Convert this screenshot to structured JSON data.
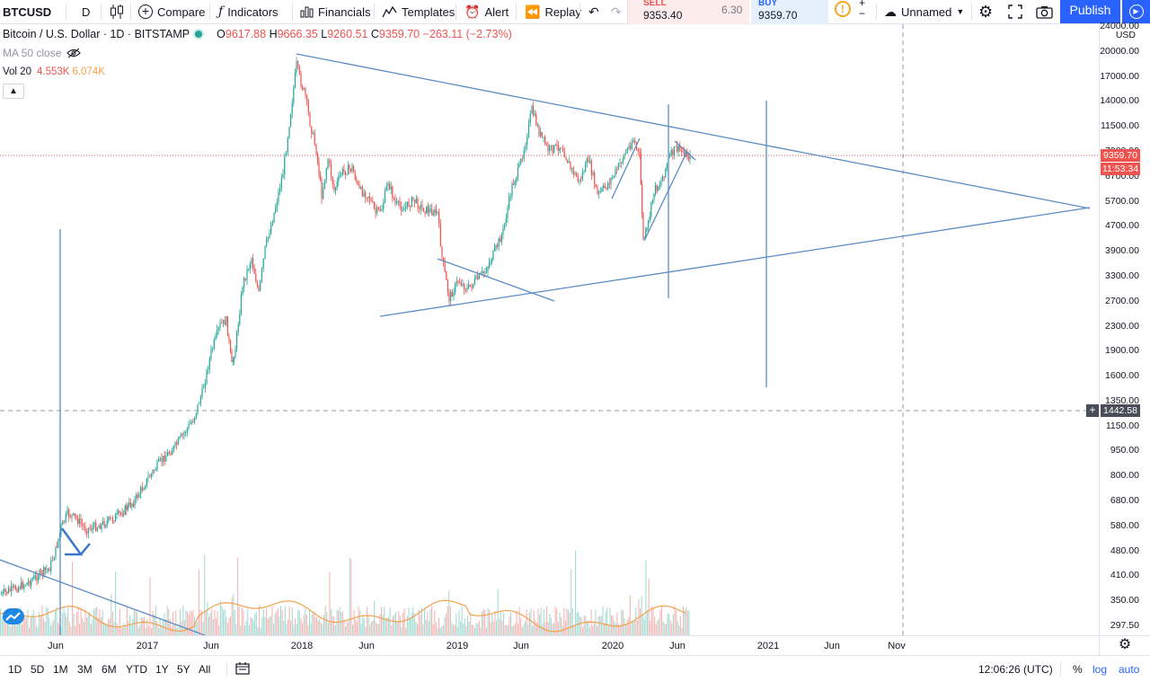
{
  "toolbar": {
    "symbol": "BTCUSD",
    "interval": "D",
    "compare": "Compare",
    "indicators": "Indicators",
    "financials": "Financials",
    "templates": "Templates",
    "alert": "Alert",
    "replay": "Replay",
    "sell_label": "SELL",
    "sell_price": "9353.40",
    "spread": "6.30",
    "buy_label": "BUY",
    "buy_price": "9359.70",
    "layout_name": "Unnamed",
    "publish": "Publish"
  },
  "legend": {
    "title": "Bitcoin / U.S. Dollar · 1D · BITSTAMP",
    "open_label": "O",
    "open": "9617.88",
    "high_label": "H",
    "high": "9666.35",
    "low_label": "L",
    "low": "9260.51",
    "close_label": "C",
    "close": "9359.70",
    "change": "−263.11 (−2.73%)",
    "ma": "MA 50 close",
    "vol": "Vol 20",
    "vol_a": "4.553K",
    "vol_b": "6.074K"
  },
  "price_axis": {
    "currency": "USD",
    "ticks": [
      "24000.00",
      "20000.00",
      "17000.00",
      "14000.00",
      "11500.00",
      "7900.00",
      "6700.00",
      "5700.00",
      "4700.00",
      "3900.00",
      "3300.00",
      "2700.00",
      "2300.00",
      "1900.00",
      "1600.00",
      "1350.00",
      "1150.00",
      "950.00",
      "800.00",
      "680.00",
      "580.00",
      "480.00",
      "410.00",
      "350.00",
      "297.50"
    ],
    "last_price": "9359.70",
    "countdown": "11:53:34",
    "crosshair_price": "1442.58"
  },
  "time_axis": {
    "ticks": [
      "Jun",
      "2017",
      "Jun",
      "2018",
      "Jun",
      "2019",
      "Jun",
      "2020",
      "Jun",
      "2021",
      "Jun",
      "Nov"
    ]
  },
  "bottom": {
    "ranges": [
      "1D",
      "5D",
      "1M",
      "3M",
      "6M",
      "YTD",
      "1Y",
      "5Y",
      "All"
    ],
    "clock": "12:06:26 (UTC)",
    "percent": "%",
    "log": "log",
    "auto": "auto"
  },
  "colors": {
    "up": "#26a69a",
    "down": "#ef5350",
    "drawing": "#5b8cc4",
    "volume_ma": "#f5a04a",
    "accent": "#2962ff"
  }
}
